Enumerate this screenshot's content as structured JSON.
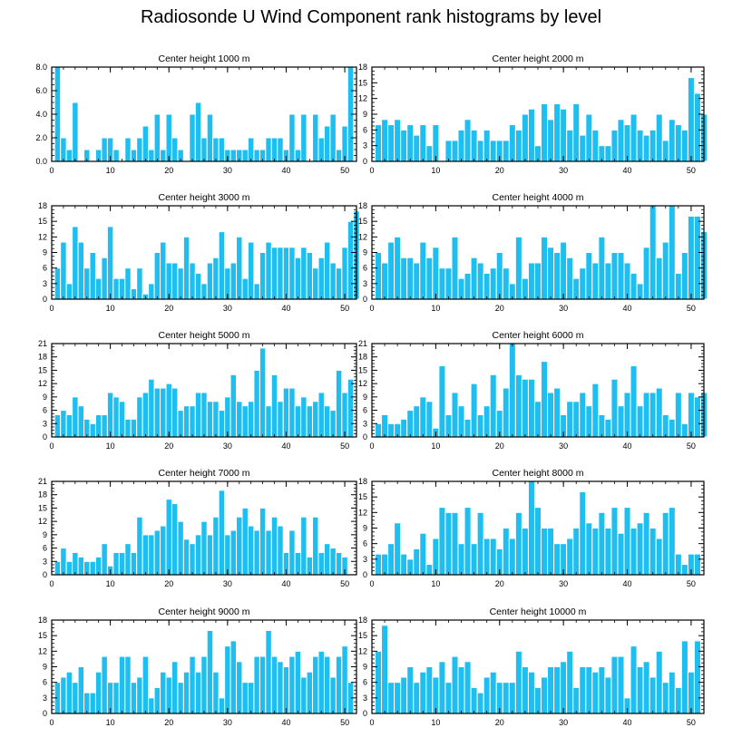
{
  "title": "Radiosonde U Wind Component rank histograms by level",
  "colors": {
    "bar": "#1ebff0",
    "bar_edge": "#ffffff",
    "axis": "#000000"
  },
  "chart_data": [
    {
      "type": "bar",
      "title": "Center height 1000 m",
      "xlim": [
        0,
        52
      ],
      "ylim": [
        0,
        8
      ],
      "xticks": [
        0,
        10,
        20,
        30,
        40,
        50
      ],
      "yticks": [
        0,
        2,
        4,
        6,
        8
      ],
      "ytick_labels": [
        "0.0",
        "2.0",
        "4.0",
        "6.0",
        "8.0"
      ],
      "values": [
        8,
        2,
        1,
        5,
        0,
        1,
        0,
        1,
        2,
        2,
        1,
        0,
        2,
        1,
        2,
        3,
        1,
        4,
        1,
        4,
        2,
        1,
        0,
        4,
        5,
        2,
        4,
        2,
        2,
        1,
        1,
        1,
        1,
        2,
        1,
        1,
        2,
        2,
        2,
        1,
        4,
        1,
        4,
        0,
        4,
        2,
        3,
        4,
        1,
        3,
        8
      ]
    },
    {
      "type": "bar",
      "title": "Center height 2000 m",
      "xlim": [
        0,
        52
      ],
      "ylim": [
        0,
        18
      ],
      "xticks": [
        0,
        10,
        20,
        30,
        40,
        50
      ],
      "yticks": [
        0,
        3,
        6,
        9,
        12,
        15,
        18
      ],
      "ytick_labels": [
        "0",
        "3",
        "6",
        "9",
        "12",
        "15",
        "18"
      ],
      "values": [
        7,
        8,
        7,
        8,
        6,
        7,
        5,
        7,
        3,
        7,
        0,
        4,
        4,
        6,
        8,
        6,
        4,
        6,
        4,
        4,
        4,
        7,
        6,
        9,
        10,
        3,
        11,
        8,
        11,
        10,
        6,
        11,
        5,
        9,
        6,
        3,
        3,
        6,
        8,
        7,
        9,
        6,
        5,
        6,
        9,
        4,
        8,
        7,
        6,
        16,
        13,
        9
      ]
    },
    {
      "type": "bar",
      "title": "Center height 3000 m",
      "xlim": [
        0,
        52
      ],
      "ylim": [
        0,
        18
      ],
      "xticks": [
        0,
        10,
        20,
        30,
        40,
        50
      ],
      "yticks": [
        0,
        3,
        6,
        9,
        12,
        15,
        18
      ],
      "ytick_labels": [
        "0",
        "3",
        "6",
        "9",
        "12",
        "15",
        "18"
      ],
      "values": [
        6,
        11,
        3,
        14,
        11,
        6,
        9,
        4,
        8,
        14,
        4,
        4,
        6,
        2,
        6,
        1,
        3,
        9,
        11,
        7,
        7,
        6,
        12,
        7,
        5,
        3,
        7,
        8,
        13,
        6,
        7,
        12,
        4,
        11,
        3,
        9,
        11,
        10,
        10,
        10,
        10,
        8,
        10,
        9,
        6,
        8,
        11,
        7,
        6,
        10,
        15,
        17
      ]
    },
    {
      "type": "bar",
      "title": "Center height 4000 m",
      "xlim": [
        0,
        52
      ],
      "ylim": [
        0,
        18
      ],
      "xticks": [
        0,
        10,
        20,
        30,
        40,
        50
      ],
      "yticks": [
        0,
        3,
        6,
        9,
        12,
        15,
        18
      ],
      "ytick_labels": [
        "0",
        "3",
        "6",
        "9",
        "12",
        "15",
        "18"
      ],
      "values": [
        9,
        7,
        11,
        12,
        8,
        8,
        7,
        11,
        8,
        10,
        6,
        6,
        12,
        4,
        5,
        8,
        7,
        5,
        6,
        9,
        6,
        3,
        12,
        4,
        7,
        7,
        12,
        10,
        9,
        11,
        8,
        4,
        6,
        9,
        7,
        12,
        7,
        9,
        9,
        7,
        5,
        3,
        10,
        18,
        8,
        11,
        18,
        5,
        9,
        16,
        16,
        13
      ]
    },
    {
      "type": "bar",
      "title": "Center height 5000 m",
      "xlim": [
        0,
        52
      ],
      "ylim": [
        0,
        21
      ],
      "xticks": [
        0,
        10,
        20,
        30,
        40,
        50
      ],
      "yticks": [
        0,
        3,
        6,
        9,
        12,
        15,
        18,
        21
      ],
      "ytick_labels": [
        "0",
        "3",
        "6",
        "9",
        "12",
        "15",
        "18",
        "21"
      ],
      "values": [
        5,
        6,
        5,
        9,
        7,
        4,
        3,
        5,
        5,
        10,
        9,
        8,
        4,
        4,
        9,
        10,
        13,
        11,
        11,
        12,
        11,
        6,
        7,
        7,
        10,
        10,
        8,
        8,
        6,
        9,
        14,
        8,
        7,
        8,
        15,
        20,
        7,
        14,
        8,
        11,
        11,
        7,
        9,
        7,
        8,
        10,
        7,
        6,
        15,
        10,
        13
      ]
    },
    {
      "type": "bar",
      "title": "Center height 6000 m",
      "xlim": [
        0,
        52
      ],
      "ylim": [
        0,
        21
      ],
      "xticks": [
        0,
        10,
        20,
        30,
        40,
        50
      ],
      "yticks": [
        0,
        3,
        6,
        9,
        12,
        15,
        18,
        21
      ],
      "ytick_labels": [
        "0",
        "3",
        "6",
        "9",
        "12",
        "15",
        "18",
        "21"
      ],
      "values": [
        3,
        5,
        3,
        3,
        4,
        6,
        7,
        9,
        8,
        2,
        16,
        5,
        10,
        7,
        4,
        12,
        5,
        7,
        14,
        6,
        11,
        21,
        14,
        13,
        13,
        8,
        17,
        10,
        11,
        5,
        8,
        8,
        10,
        7,
        12,
        5,
        4,
        13,
        7,
        10,
        16,
        7,
        10,
        10,
        11,
        5,
        4,
        10,
        3,
        10,
        9,
        10
      ]
    },
    {
      "type": "bar",
      "title": "Center height 7000 m",
      "xlim": [
        0,
        52
      ],
      "ylim": [
        0,
        21
      ],
      "xticks": [
        0,
        10,
        20,
        30,
        40,
        50
      ],
      "yticks": [
        0,
        3,
        6,
        9,
        12,
        15,
        18,
        21
      ],
      "ytick_labels": [
        "0",
        "3",
        "6",
        "9",
        "12",
        "15",
        "18",
        "21"
      ],
      "values": [
        3,
        6,
        3,
        5,
        4,
        3,
        3,
        4,
        7,
        2,
        5,
        5,
        7,
        5,
        13,
        9,
        9,
        10,
        11,
        17,
        16,
        12,
        8,
        7,
        9,
        12,
        9,
        13,
        19,
        9,
        10,
        13,
        15,
        11,
        10,
        15,
        10,
        13,
        11,
        5,
        10,
        5,
        13,
        4,
        13,
        5,
        7,
        6,
        5,
        4
      ]
    },
    {
      "type": "bar",
      "title": "Center height 8000 m",
      "xlim": [
        0,
        52
      ],
      "ylim": [
        0,
        18
      ],
      "xticks": [
        0,
        10,
        20,
        30,
        40,
        50
      ],
      "yticks": [
        0,
        3,
        6,
        9,
        12,
        15,
        18
      ],
      "ytick_labels": [
        "0",
        "3",
        "6",
        "9",
        "12",
        "15",
        "18"
      ],
      "values": [
        4,
        4,
        6,
        10,
        4,
        3,
        5,
        8,
        2,
        7,
        13,
        12,
        12,
        6,
        13,
        6,
        12,
        7,
        7,
        5,
        9,
        7,
        12,
        9,
        18,
        13,
        9,
        9,
        6,
        6,
        7,
        9,
        16,
        10,
        9,
        12,
        9,
        13,
        8,
        13,
        9,
        10,
        12,
        9,
        7,
        12,
        13,
        4,
        2,
        4,
        4
      ]
    },
    {
      "type": "bar",
      "title": "Center height 9000 m",
      "xlim": [
        0,
        52
      ],
      "ylim": [
        0,
        18
      ],
      "xticks": [
        0,
        10,
        20,
        30,
        40,
        50
      ],
      "yticks": [
        0,
        3,
        6,
        9,
        12,
        15,
        18
      ],
      "ytick_labels": [
        "0",
        "3",
        "6",
        "9",
        "12",
        "15",
        "18"
      ],
      "values": [
        6,
        7,
        8,
        6,
        9,
        4,
        4,
        8,
        11,
        6,
        6,
        11,
        11,
        6,
        7,
        11,
        3,
        5,
        8,
        7,
        10,
        6,
        8,
        11,
        8,
        11,
        16,
        8,
        3,
        13,
        14,
        10,
        6,
        6,
        11,
        11,
        16,
        11,
        10,
        9,
        11,
        12,
        7,
        8,
        11,
        12,
        11,
        7,
        11,
        13,
        6
      ]
    },
    {
      "type": "bar",
      "title": "Center height 10000 m",
      "xlim": [
        0,
        52
      ],
      "ylim": [
        0,
        18
      ],
      "xticks": [
        0,
        10,
        20,
        30,
        40,
        50
      ],
      "yticks": [
        0,
        3,
        6,
        9,
        12,
        15,
        18
      ],
      "ytick_labels": [
        "0",
        "3",
        "6",
        "9",
        "12",
        "15",
        "18"
      ],
      "values": [
        12,
        17,
        6,
        6,
        7,
        9,
        6,
        8,
        9,
        7,
        10,
        6,
        11,
        9,
        10,
        5,
        4,
        7,
        8,
        6,
        6,
        6,
        12,
        9,
        8,
        5,
        7,
        9,
        9,
        10,
        12,
        5,
        9,
        9,
        8,
        9,
        7,
        11,
        11,
        3,
        13,
        9,
        10,
        7,
        12,
        6,
        8,
        5,
        14,
        8,
        14
      ]
    }
  ]
}
